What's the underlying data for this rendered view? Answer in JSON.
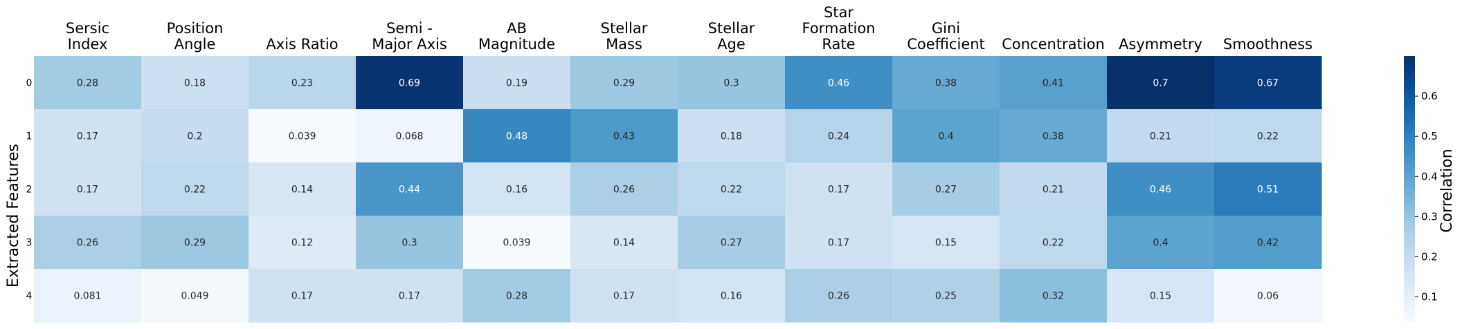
{
  "chart_data": {
    "type": "heatmap",
    "title": "",
    "ylabel": "Extracted Features",
    "colorbar_label": "Correlation",
    "colormap": "Blues",
    "vmin": 0.039,
    "vmax": 0.7,
    "columns": [
      [
        "Sersic",
        "Index"
      ],
      [
        "Position",
        "Angle"
      ],
      [
        "Axis Ratio"
      ],
      [
        "Semi -",
        "Major Axis"
      ],
      [
        "AB",
        "Magnitude"
      ],
      [
        "Stellar",
        "Mass"
      ],
      [
        "Stellar",
        "Age"
      ],
      [
        "Star",
        "Formation",
        "Rate"
      ],
      [
        "Gini",
        "Coefficient"
      ],
      [
        "Concentration"
      ],
      [
        "Asymmetry"
      ],
      [
        "Smoothness"
      ]
    ],
    "rows": [
      "0",
      "1",
      "2",
      "3",
      "4"
    ],
    "values": [
      [
        0.28,
        0.18,
        0.23,
        0.69,
        0.19,
        0.29,
        0.3,
        0.46,
        0.38,
        0.41,
        0.7,
        0.67
      ],
      [
        0.17,
        0.2,
        0.039,
        0.068,
        0.48,
        0.43,
        0.18,
        0.24,
        0.4,
        0.38,
        0.21,
        0.22
      ],
      [
        0.17,
        0.22,
        0.14,
        0.44,
        0.16,
        0.26,
        0.22,
        0.17,
        0.27,
        0.21,
        0.46,
        0.51
      ],
      [
        0.26,
        0.29,
        0.12,
        0.3,
        0.039,
        0.14,
        0.27,
        0.17,
        0.15,
        0.22,
        0.4,
        0.42
      ],
      [
        0.081,
        0.049,
        0.17,
        0.17,
        0.28,
        0.17,
        0.16,
        0.26,
        0.25,
        0.32,
        0.15,
        0.06
      ]
    ],
    "labels": [
      [
        "0.28",
        "0.18",
        "0.23",
        "0.69",
        "0.19",
        "0.29",
        "0.3",
        "0.46",
        "0.38",
        "0.41",
        "0.7",
        "0.67"
      ],
      [
        "0.17",
        "0.2",
        "0.039",
        "0.068",
        "0.48",
        "0.43",
        "0.18",
        "0.24",
        "0.4",
        "0.38",
        "0.21",
        "0.22"
      ],
      [
        "0.17",
        "0.22",
        "0.14",
        "0.44",
        "0.16",
        "0.26",
        "0.22",
        "0.17",
        "0.27",
        "0.21",
        "0.46",
        "0.51"
      ],
      [
        "0.26",
        "0.29",
        "0.12",
        "0.3",
        "0.039",
        "0.14",
        "0.27",
        "0.17",
        "0.15",
        "0.22",
        "0.4",
        "0.42"
      ],
      [
        "0.081",
        "0.049",
        "0.17",
        "0.17",
        "0.28",
        "0.17",
        "0.16",
        "0.26",
        "0.25",
        "0.32",
        "0.15",
        "0.06"
      ]
    ],
    "colorbar_ticks": [
      "0.1",
      "0.2",
      "0.3",
      "0.4",
      "0.5",
      "0.6"
    ],
    "grid": false
  }
}
